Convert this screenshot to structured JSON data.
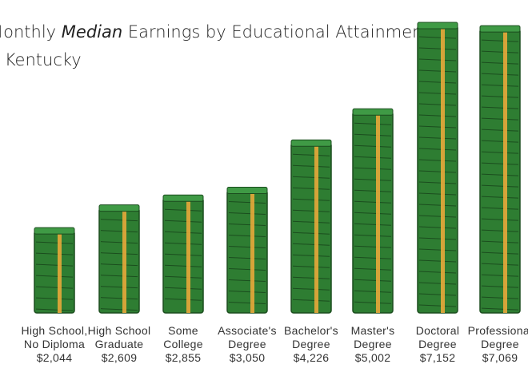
{
  "chart_data": {
    "type": "bar",
    "title": [
      "Monthly",
      "Median",
      "Earnings by Educational Attainment"
    ],
    "subtitle": "in Kentucky",
    "categories": [
      [
        "High School,",
        "No Diploma"
      ],
      [
        "High School",
        "Graduate"
      ],
      [
        "Some",
        "College"
      ],
      [
        "Associate's",
        "Degree"
      ],
      [
        "Bachelor's",
        "Degree"
      ],
      [
        "Master's",
        "Degree"
      ],
      [
        "Doctoral",
        "Degree"
      ],
      [
        "Professional",
        "Degree"
      ]
    ],
    "values": [
      2044,
      2609,
      2855,
      3050,
      4226,
      5002,
      7152,
      7069
    ],
    "value_labels": [
      "$2,044",
      "$2,609",
      "$2,855",
      "$3,050",
      "$4,226",
      "$5,002",
      "$7,152",
      "$7,069"
    ],
    "color": "#2e7d32"
  }
}
